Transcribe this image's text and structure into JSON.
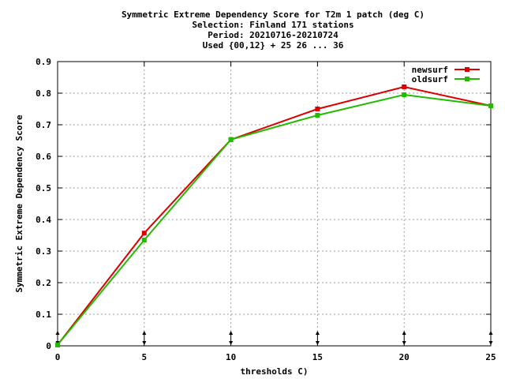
{
  "chart_data": {
    "type": "line",
    "title_lines": [
      "Symmetric Extreme Dependency Score  for T2m 1 patch (deg C)",
      "Selection: Finland    171 stations",
      "Period: 20210716-20210724",
      "Used {00,12} + 25 26 ... 36"
    ],
    "xlabel": "thresholds C)",
    "ylabel": "Symmetric Extreme Dependency Score",
    "xlim": [
      0,
      25
    ],
    "ylim": [
      0,
      0.9
    ],
    "x_ticks": [
      0,
      5,
      10,
      15,
      20,
      25
    ],
    "x_tick_labels": [
      "0",
      "5",
      "10",
      "15",
      "20",
      "25"
    ],
    "y_ticks": [
      0,
      0.1,
      0.2,
      0.3,
      0.4,
      0.5,
      0.6,
      0.7,
      0.8,
      0.9
    ],
    "y_tick_labels": [
      "0",
      "0.1",
      "0.2",
      "0.3",
      "0.4",
      "0.5",
      "0.6",
      "0.7",
      "0.8",
      "0.9"
    ],
    "grid": true,
    "legend_position": "top-right",
    "x": [
      0,
      5,
      10,
      15,
      20,
      25
    ],
    "series": [
      {
        "name": "newsurf",
        "color": "#dd0000",
        "values": [
          0.003,
          0.357,
          0.653,
          0.75,
          0.82,
          0.76
        ]
      },
      {
        "name": "oldsurf",
        "color": "#22bb00",
        "values": [
          0.003,
          0.335,
          0.653,
          0.73,
          0.795,
          0.76
        ]
      }
    ],
    "arrow_markers_x": [
      0,
      5,
      10,
      15,
      20,
      25
    ]
  }
}
